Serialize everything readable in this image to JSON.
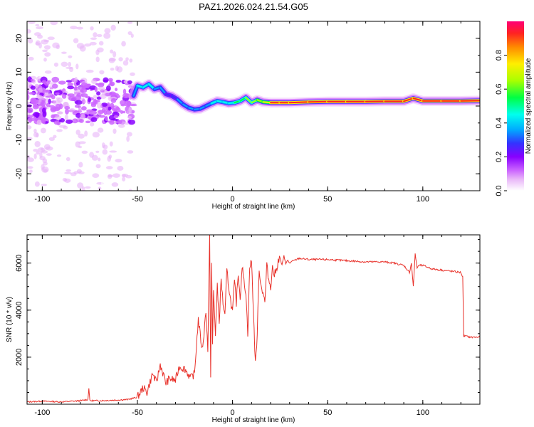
{
  "figure_title": "PAZ1.2026.024.21.54.G05",
  "colors": {
    "snr_line": "#e8312a",
    "ridge_core": "#ff2222",
    "ridge_halo": "#ffee00",
    "scatter": "#8a2be2"
  },
  "chart_data": [
    {
      "type": "heatmap",
      "title": "",
      "xlabel": "Height of straight line (km)",
      "ylabel": "Frequency (Hz)",
      "xlim": [
        -108,
        130
      ],
      "ylim": [
        -25,
        25
      ],
      "xticks": [
        -100,
        -50,
        0,
        50,
        100
      ],
      "yticks": [
        -20,
        -10,
        0,
        10,
        20
      ],
      "grid": false,
      "colorbar": {
        "label": "Normalized spectral amplitude",
        "range": [
          0.0,
          1.0
        ],
        "ticks": [
          "0.0",
          "0.2",
          "0.4",
          "0.6",
          "0.8"
        ],
        "colormap": [
          "#ffffff",
          "#e8b4f8",
          "#cc66ff",
          "#8800ff",
          "#3333ff",
          "#00aaff",
          "#00ffee",
          "#00ff44",
          "#aaff00",
          "#ffee00",
          "#ff8800",
          "#ff2222",
          "#ff0077"
        ]
      },
      "ridge": {
        "x": [
          -52,
          -50,
          -47,
          -44,
          -41,
          -38,
          -35,
          -32,
          -29,
          -26,
          -23,
          -20,
          -17,
          -14,
          -11,
          -8,
          -5,
          -2,
          1,
          4,
          7,
          10,
          13,
          16,
          20,
          25,
          30,
          40,
          50,
          60,
          70,
          80,
          90,
          95,
          100,
          110,
          120,
          130
        ],
        "y": [
          3.0,
          6.0,
          5.5,
          6.5,
          5.0,
          5.5,
          3.5,
          3.0,
          2.0,
          0.5,
          -0.5,
          -1.0,
          -0.8,
          0.0,
          0.8,
          1.5,
          1.2,
          0.8,
          1.0,
          1.5,
          2.5,
          1.0,
          1.8,
          1.2,
          1.0,
          1.0,
          1.0,
          1.2,
          1.3,
          1.3,
          1.3,
          1.4,
          1.4,
          2.3,
          1.5,
          1.5,
          1.5,
          1.6
        ],
        "amplitude": [
          0.3,
          0.45,
          0.5,
          0.5,
          0.45,
          0.45,
          0.35,
          0.35,
          0.35,
          0.4,
          0.45,
          0.45,
          0.4,
          0.45,
          0.45,
          0.5,
          0.55,
          0.5,
          0.55,
          0.6,
          0.6,
          0.65,
          0.7,
          0.7,
          0.85,
          0.95,
          0.95,
          0.9,
          0.95,
          0.95,
          0.95,
          0.95,
          0.95,
          0.9,
          0.95,
          0.95,
          0.95,
          0.95
        ]
      },
      "noise_region": {
        "x_range": [
          -108,
          -52
        ],
        "y_range": [
          -25,
          25
        ],
        "core_band_y": [
          -5,
          8
        ]
      }
    },
    {
      "type": "line",
      "title": "",
      "xlabel": "Height of straight line (km)",
      "ylabel": "SNR (10 * v/v)",
      "xlim": [
        -108,
        130
      ],
      "ylim": [
        0,
        7200
      ],
      "xticks": [
        -100,
        -50,
        0,
        50,
        100
      ],
      "yticks": [
        2000,
        4000,
        6000
      ],
      "grid": false,
      "series": [
        {
          "x": [
            -108,
            -100,
            -90,
            -80,
            -76,
            -75.5,
            -75,
            -70,
            -60,
            -55,
            -50,
            -47,
            -45,
            -42,
            -40,
            -38,
            -35,
            -33,
            -30,
            -28,
            -25,
            -22,
            -20,
            -18,
            -16,
            -15,
            -14,
            -13,
            -12,
            -11.5,
            -11,
            -10.5,
            -10,
            -9,
            -8,
            -7,
            -6,
            -5,
            -4,
            -3,
            -2,
            -1,
            0,
            1,
            2,
            3,
            4,
            5,
            6,
            7,
            8,
            9,
            10,
            11,
            12,
            13,
            14,
            15,
            16,
            17,
            18,
            19,
            20,
            21,
            22,
            23,
            24,
            25,
            26,
            27,
            28,
            29,
            30,
            32,
            35,
            40,
            50,
            60,
            70,
            80,
            85,
            90,
            93,
            94,
            95,
            96,
            97,
            98,
            100,
            105,
            110,
            115,
            120,
            121,
            121.5,
            122,
            125,
            130
          ],
          "y": [
            100,
            130,
            100,
            150,
            200,
            700,
            150,
            150,
            180,
            200,
            300,
            700,
            500,
            1300,
            900,
            1700,
            900,
            1100,
            1000,
            1600,
            1500,
            1100,
            1300,
            3600,
            2300,
            3000,
            4000,
            2300,
            7100,
            1200,
            6000,
            2500,
            4800,
            3000,
            5000,
            3500,
            5300,
            4300,
            3700,
            5700,
            5000,
            4400,
            3900,
            5200,
            4300,
            5600,
            4500,
            5900,
            5200,
            4800,
            3000,
            5800,
            6100,
            3900,
            1700,
            3000,
            5800,
            5000,
            4800,
            4300,
            5900,
            5300,
            5000,
            5800,
            5500,
            5700,
            6100,
            6200,
            5900,
            6300,
            6000,
            6100,
            6000,
            6100,
            6200,
            6150,
            6150,
            6100,
            6050,
            6050,
            6000,
            5900,
            5600,
            6000,
            5000,
            6400,
            5800,
            5900,
            5900,
            5750,
            5700,
            5650,
            5600,
            5400,
            2900,
            2900,
            2850,
            2850
          ]
        }
      ]
    }
  ]
}
